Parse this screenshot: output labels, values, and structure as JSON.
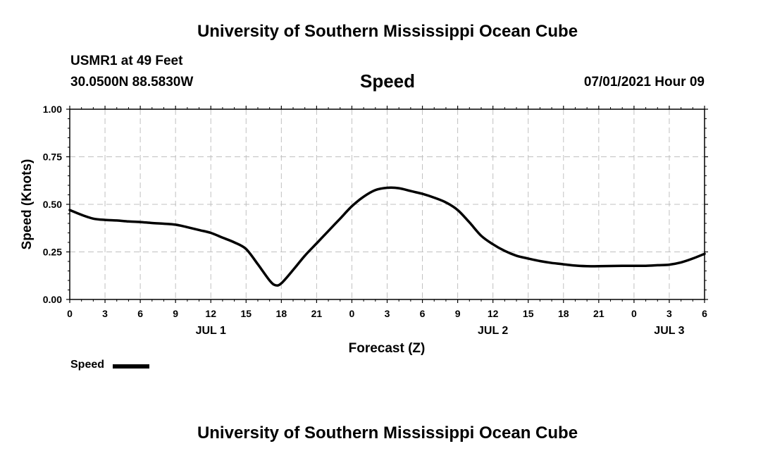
{
  "header": {
    "title": "University of Southern Mississippi Ocean Cube",
    "station": "USMR1 at 49 Feet",
    "coords": "30.0500N  88.5830W",
    "variable": "Speed",
    "datetime": "07/01/2021 Hour 09"
  },
  "footer": {
    "title": "University of Southern Mississippi Ocean Cube"
  },
  "legend": {
    "label": "Speed",
    "color": "#000000"
  },
  "chart_data": {
    "type": "line",
    "title": "Speed",
    "xlabel": "Forecast (Z)",
    "ylabel": "Speed (Knots)",
    "xlim": [
      0,
      54
    ],
    "ylim": [
      0,
      1
    ],
    "grid": true,
    "x_ticks": [
      0,
      3,
      6,
      9,
      12,
      15,
      18,
      21,
      24,
      27,
      30,
      33,
      36,
      39,
      42,
      45,
      48,
      51,
      54
    ],
    "x_tick_labels": [
      "0",
      "3",
      "6",
      "9",
      "12",
      "15",
      "18",
      "21",
      "0",
      "3",
      "6",
      "9",
      "12",
      "15",
      "18",
      "21",
      "0",
      "3",
      "6"
    ],
    "date_labels": [
      {
        "x": 12,
        "label": "JUL 1"
      },
      {
        "x": 36,
        "label": "JUL 2"
      },
      {
        "x": 51,
        "label": "JUL 3"
      }
    ],
    "y_ticks": [
      0,
      0.25,
      0.5,
      0.75,
      1.0
    ],
    "y_tick_labels": [
      "0.00",
      "0.25",
      "0.50",
      "0.75",
      "1.00"
    ],
    "series": [
      {
        "name": "Speed",
        "color": "#000000",
        "x": [
          0,
          1,
          2,
          3,
          4,
          5,
          6,
          7,
          8,
          9,
          10,
          11,
          12,
          13,
          14,
          15,
          16,
          17,
          17.5,
          18,
          19,
          20,
          21,
          22,
          23,
          24,
          25,
          26,
          27,
          28,
          29,
          30,
          31,
          32,
          33,
          34,
          35,
          36,
          37,
          38,
          39,
          40,
          41,
          42,
          43,
          44,
          45,
          46,
          47,
          48,
          49,
          50,
          51,
          52,
          53,
          54
        ],
        "values": [
          0.47,
          0.445,
          0.425,
          0.418,
          0.415,
          0.41,
          0.407,
          0.402,
          0.398,
          0.393,
          0.38,
          0.365,
          0.35,
          0.325,
          0.3,
          0.265,
          0.185,
          0.1,
          0.075,
          0.085,
          0.155,
          0.23,
          0.295,
          0.36,
          0.425,
          0.49,
          0.54,
          0.575,
          0.587,
          0.585,
          0.57,
          0.555,
          0.535,
          0.51,
          0.47,
          0.405,
          0.335,
          0.29,
          0.255,
          0.23,
          0.215,
          0.202,
          0.192,
          0.185,
          0.178,
          0.175,
          0.175,
          0.176,
          0.177,
          0.177,
          0.177,
          0.18,
          0.183,
          0.195,
          0.215,
          0.24
        ]
      }
    ]
  }
}
